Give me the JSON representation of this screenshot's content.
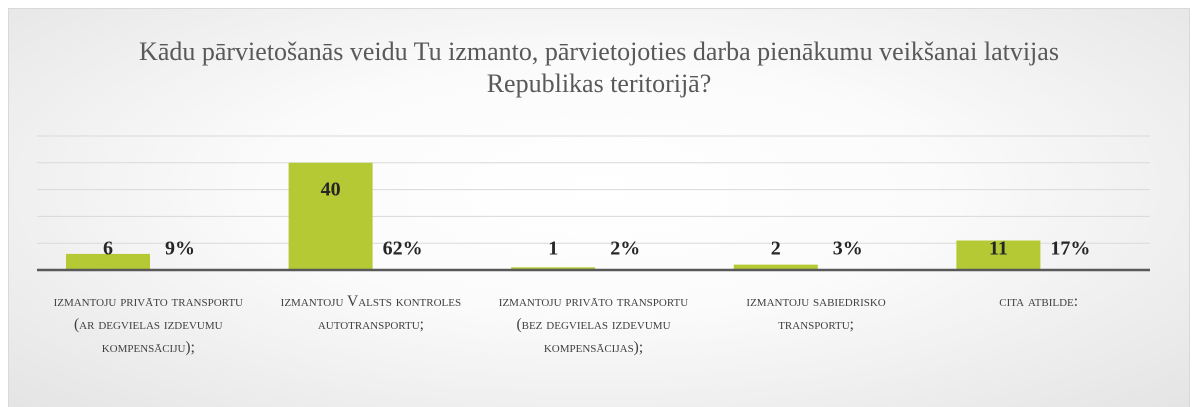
{
  "chart_data": {
    "type": "bar",
    "title": "Kādu pārvietošanās veidu Tu izmanto, pārvietojoties darba pienākumu veikšanai latvijas Republikas teritorijā?",
    "categories": [
      "izmantoju privāto transportu (ar degvielas izdevumu kompensāciju);",
      "izmantoju Valsts kontroles autotransportu;",
      "izmantoju privāto transportu (bez degvielas izdevumu kompensācijas);",
      "izmantoju sabiedrisko transportu;",
      "cita atbilde:"
    ],
    "series": [
      {
        "color": "#b5c934",
        "values": [
          6,
          40,
          1,
          2,
          11
        ]
      },
      {
        "values": [
          9,
          62,
          2,
          3,
          17
        ],
        "value_labels": [
          "9%",
          "62%",
          "2%",
          "3%",
          "17%"
        ]
      }
    ],
    "ylim": [
      0,
      50
    ],
    "yticks": [
      0,
      10,
      20,
      30,
      40,
      50
    ],
    "grid": true
  }
}
